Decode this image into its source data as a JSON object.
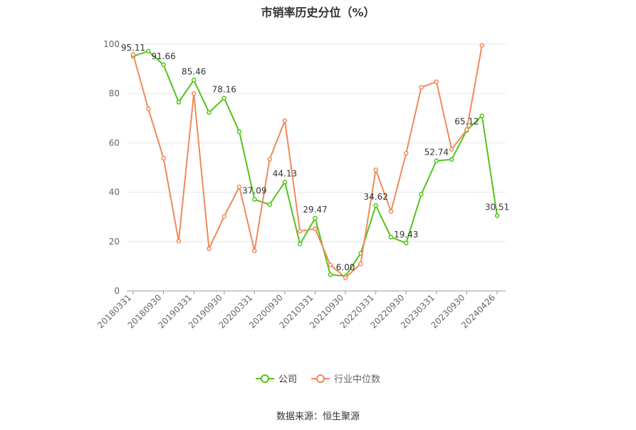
{
  "chart_data": {
    "type": "line",
    "title": "市销率历史分位（%）",
    "x": [
      "20180331",
      "20180630",
      "20180930",
      "20181231",
      "20190331",
      "20190630",
      "20190930",
      "20191231",
      "20200331",
      "20200630",
      "20200930",
      "20201231",
      "20210331",
      "20210630",
      "20210930",
      "20211231",
      "20220331",
      "20220630",
      "20220930",
      "20221231",
      "20230331",
      "20230630",
      "20230930",
      "20231231",
      "20240426"
    ],
    "x_tick_labels": [
      "20180331",
      "20180930",
      "20190331",
      "20190930",
      "20200331",
      "20200930",
      "20210331",
      "20210930",
      "20220331",
      "20220930",
      "20230331",
      "20230930",
      "20240426"
    ],
    "ylim": [
      0,
      100
    ],
    "yticks": [
      0,
      20,
      40,
      60,
      80,
      100
    ],
    "grid": true,
    "legend_position": "bottom",
    "series": [
      {
        "name": "公司",
        "color": "#52c41a",
        "values": [
          95.11,
          97.2,
          91.66,
          76.5,
          85.46,
          72.3,
          78.16,
          64.5,
          37.09,
          35.0,
          44.13,
          19.0,
          29.47,
          6.6,
          6.0,
          15.2,
          34.62,
          21.8,
          19.43,
          39.2,
          52.74,
          53.3,
          65.12,
          71.0,
          30.51
        ],
        "labels": {
          "0": "95.11",
          "2": "91.66",
          "4": "85.46",
          "6": "78.16",
          "8": "37.09",
          "10": "44.13",
          "12": "29.47",
          "14": "6.00",
          "16": "34.62",
          "18": "19.43",
          "20": "52.74",
          "22": "65.12",
          "24": "30.51"
        }
      },
      {
        "name": "行业中位数",
        "color": "#f0895a",
        "values": [
          95.8,
          73.8,
          53.8,
          20.2,
          80.0,
          17.1,
          30.2,
          42.2,
          16.3,
          53.4,
          69.0,
          24.2,
          25.2,
          10.6,
          5.3,
          11.0,
          49.1,
          32.2,
          55.8,
          82.5,
          84.8,
          57.4,
          65.4,
          99.5,
          null
        ]
      }
    ]
  },
  "source_note": "数据来源：恒生聚源"
}
